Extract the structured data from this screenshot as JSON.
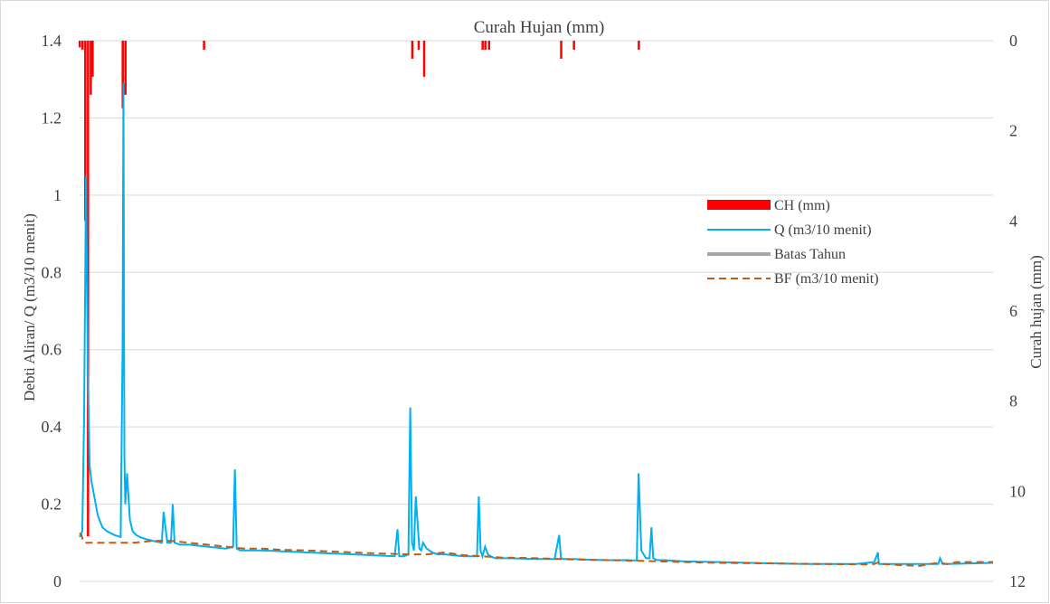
{
  "chart_data": {
    "type": "line",
    "title": "Curah Hujan  (mm)",
    "ylabel": "Debti Aliran/ Q (m3/10 menit)",
    "y2label": "Curah hujan (mm)",
    "ylim": [
      0,
      1.4
    ],
    "y2lim": [
      0,
      12
    ],
    "y2_inverted": true,
    "yticks": [
      "0",
      "0.2",
      "0.4",
      "0.6",
      "0.8",
      "1",
      "1.2",
      "1.4"
    ],
    "y2ticks": [
      "0",
      "2",
      "4",
      "6",
      "8",
      "10",
      "12"
    ],
    "grid": true,
    "legend_position": "right",
    "x_range": [
      0,
      1000
    ],
    "series": [
      {
        "name": "CH (mm)",
        "kind": "bar",
        "axis": "secondary",
        "color": "#ff0000",
        "x": [
          0,
          3,
          6,
          9,
          12,
          14,
          47,
          50,
          136,
          364,
          371,
          377,
          441,
          444,
          448,
          527,
          541,
          612
        ],
        "values": [
          0.15,
          0.2,
          4.0,
          11.0,
          1.2,
          0.8,
          1.5,
          1.2,
          0.2,
          0.4,
          0.2,
          0.8,
          0.2,
          0.2,
          0.2,
          0.4,
          0.2,
          0.2
        ]
      },
      {
        "name": "Q (m3/10 menit)",
        "kind": "line",
        "axis": "primary",
        "color": "#00b0f0",
        "x": [
          0,
          3,
          5,
          7,
          9,
          11,
          13,
          16,
          20,
          25,
          30,
          38,
          45,
          47,
          48,
          49,
          50,
          52,
          55,
          58,
          62,
          66,
          72,
          80,
          90,
          92,
          96,
          100,
          102,
          104,
          110,
          120,
          140,
          160,
          168,
          170,
          172,
          176,
          200,
          250,
          300,
          345,
          348,
          350,
          355,
          360,
          362,
          364,
          366,
          368,
          372,
          374,
          376,
          380,
          386,
          392,
          400,
          420,
          435,
          437,
          439,
          441,
          444,
          447,
          450,
          455,
          470,
          500,
          520,
          525,
          527,
          530,
          540,
          560,
          580,
          600,
          608,
          610,
          612,
          615,
          620,
          624,
          626,
          628,
          632,
          640,
          660,
          700,
          750,
          800,
          850,
          870,
          874,
          875,
          876,
          880,
          900,
          930,
          940,
          942,
          945,
          950,
          1000
        ],
        "values": [
          0.115,
          0.13,
          0.43,
          1.05,
          0.55,
          0.3,
          0.26,
          0.22,
          0.17,
          0.14,
          0.13,
          0.12,
          0.115,
          0.6,
          1.29,
          0.33,
          0.2,
          0.28,
          0.16,
          0.13,
          0.12,
          0.115,
          0.11,
          0.105,
          0.1,
          0.18,
          0.1,
          0.1,
          0.2,
          0.1,
          0.095,
          0.095,
          0.09,
          0.085,
          0.09,
          0.29,
          0.085,
          0.08,
          0.08,
          0.075,
          0.07,
          0.065,
          0.135,
          0.065,
          0.065,
          0.07,
          0.45,
          0.1,
          0.08,
          0.22,
          0.085,
          0.08,
          0.1,
          0.085,
          0.075,
          0.07,
          0.07,
          0.065,
          0.065,
          0.22,
          0.08,
          0.065,
          0.09,
          0.07,
          0.065,
          0.06,
          0.06,
          0.058,
          0.058,
          0.12,
          0.06,
          0.058,
          0.058,
          0.056,
          0.055,
          0.055,
          0.054,
          0.055,
          0.28,
          0.08,
          0.06,
          0.06,
          0.14,
          0.06,
          0.055,
          0.055,
          0.052,
          0.05,
          0.047,
          0.045,
          0.045,
          0.05,
          0.075,
          0.045,
          0.045,
          0.045,
          0.045,
          0.045,
          0.045,
          0.06,
          0.045,
          0.045,
          0.048
        ]
      },
      {
        "name": "Batas Tahun",
        "kind": "line",
        "axis": "primary",
        "color": "#a6a6a6",
        "x": [],
        "values": []
      },
      {
        "name": "BF (m3/10 menit)",
        "kind": "line",
        "axis": "primary",
        "color": "#c55a11",
        "dashed": true,
        "x": [
          0,
          2,
          4,
          6,
          10,
          20,
          40,
          60,
          80,
          100,
          120,
          140,
          160,
          180,
          200,
          220,
          250,
          280,
          300,
          330,
          360,
          380,
          400,
          420,
          440,
          460,
          500,
          540,
          580,
          620,
          660,
          700,
          740,
          780,
          820,
          860,
          870,
          875,
          880,
          900,
          920,
          930,
          940,
          950,
          960,
          980,
          1000
        ],
        "values": [
          0.125,
          0.12,
          0.105,
          0.1,
          0.1,
          0.1,
          0.1,
          0.1,
          0.105,
          0.105,
          0.1,
          0.095,
          0.09,
          0.085,
          0.085,
          0.082,
          0.08,
          0.077,
          0.075,
          0.072,
          0.07,
          0.07,
          0.075,
          0.068,
          0.065,
          0.062,
          0.06,
          0.057,
          0.055,
          0.053,
          0.05,
          0.048,
          0.047,
          0.046,
          0.045,
          0.044,
          0.045,
          0.05,
          0.045,
          0.042,
          0.04,
          0.045,
          0.048,
          0.045,
          0.05,
          0.05,
          0.05
        ]
      }
    ]
  }
}
